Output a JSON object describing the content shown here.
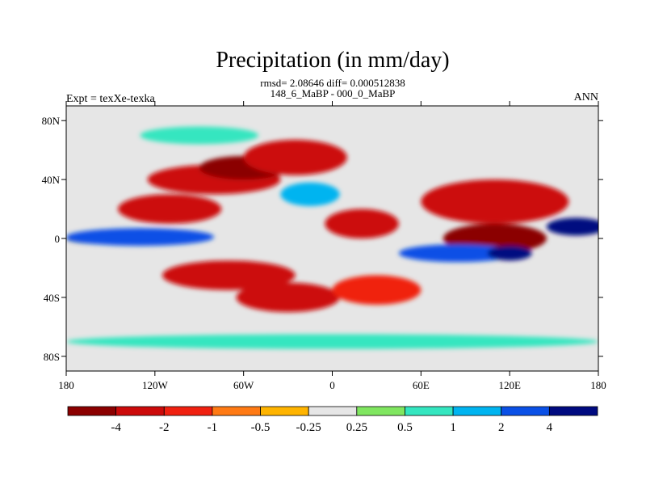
{
  "chart_data": {
    "type": "heatmap",
    "title": "Precipitation (in mm/day)",
    "stats": "rmsd= 2.08646 diff= 0.000512838",
    "subtitle": "148_6_MaBP - 000_0_MaBP",
    "experiment": "Expt = texXe-texka",
    "season": "ANN",
    "units": "mm/day",
    "x_range": [
      -180,
      180
    ],
    "y_range": [
      -90,
      90
    ],
    "x_ticks": [
      {
        "value": -180,
        "label": "180"
      },
      {
        "value": -120,
        "label": "120W"
      },
      {
        "value": -60,
        "label": "60W"
      },
      {
        "value": 0,
        "label": "0"
      },
      {
        "value": 60,
        "label": "60E"
      },
      {
        "value": 120,
        "label": "120E"
      },
      {
        "value": 180,
        "label": "180"
      }
    ],
    "y_ticks": [
      {
        "value": 80,
        "label": "80N"
      },
      {
        "value": 40,
        "label": "40N"
      },
      {
        "value": 0,
        "label": "0"
      },
      {
        "value": -40,
        "label": "40S"
      },
      {
        "value": -80,
        "label": "80S"
      }
    ],
    "colorbar": {
      "levels": [
        "-4",
        "-2",
        "-1",
        "-0.5",
        "-0.25",
        "0.25",
        "0.5",
        "1",
        "2",
        "4"
      ],
      "colors": [
        "#8b0000",
        "#cc0a0a",
        "#f02010",
        "#ff7a14",
        "#ffb400",
        "#e6e6e6",
        "#80e660",
        "#34e6c0",
        "#00b4f0",
        "#0a50e6",
        "#000a80"
      ]
    },
    "features": [
      {
        "name": "tropical-pacific-wet-west",
        "lon": -150,
        "lat": 0,
        "rx": 30,
        "ry": 4,
        "level": 10
      },
      {
        "name": "tropical-pacific-wet-band",
        "lon": -130,
        "lat": 1,
        "rx": 50,
        "ry": 6,
        "level": 9
      },
      {
        "name": "equatorial-dry-central",
        "lon": -110,
        "lat": 20,
        "rx": 35,
        "ry": 10,
        "level": 1
      },
      {
        "name": "n-pacific-dry-band",
        "lon": -80,
        "lat": 40,
        "rx": 45,
        "ry": 10,
        "level": 1
      },
      {
        "name": "n-pacific-dry-core",
        "lon": -60,
        "lat": 48,
        "rx": 30,
        "ry": 8,
        "level": 0
      },
      {
        "name": "n-atlantic-dry",
        "lon": -25,
        "lat": 55,
        "rx": 35,
        "ry": 12,
        "level": 1
      },
      {
        "name": "s-pacific-dry-diagonal",
        "lon": -70,
        "lat": -25,
        "rx": 45,
        "ry": 10,
        "level": 1
      },
      {
        "name": "s-atlantic-dry",
        "lon": -30,
        "lat": -40,
        "rx": 35,
        "ry": 10,
        "level": 1
      },
      {
        "name": "africa-dry-core",
        "lon": 20,
        "lat": 10,
        "rx": 25,
        "ry": 10,
        "level": 1
      },
      {
        "name": "s-africa-dry",
        "lon": 30,
        "lat": -35,
        "rx": 30,
        "ry": 10,
        "level": 2
      },
      {
        "name": "asia-dry",
        "lon": 110,
        "lat": 25,
        "rx": 50,
        "ry": 15,
        "level": 1
      },
      {
        "name": "maritime-continent-dry",
        "lon": 110,
        "lat": 0,
        "rx": 35,
        "ry": 10,
        "level": 0
      },
      {
        "name": "e-pacific-wet",
        "lon": 165,
        "lat": 8,
        "rx": 20,
        "ry": 6,
        "level": 10
      },
      {
        "name": "indian-ocean-wet",
        "lon": 85,
        "lat": -10,
        "rx": 40,
        "ry": 6,
        "level": 9
      },
      {
        "name": "s-indian-wet-core",
        "lon": 120,
        "lat": -10,
        "rx": 15,
        "ry": 5,
        "level": 10
      },
      {
        "name": "atlantic-wet",
        "lon": -15,
        "lat": 30,
        "rx": 20,
        "ry": 8,
        "level": 8
      },
      {
        "name": "s-ocean-wet-band",
        "lon": 0,
        "lat": -70,
        "rx": 180,
        "ry": 5,
        "level": 7
      },
      {
        "name": "arctic-wet",
        "lon": -90,
        "lat": 70,
        "rx": 40,
        "ry": 6,
        "level": 7
      }
    ]
  }
}
